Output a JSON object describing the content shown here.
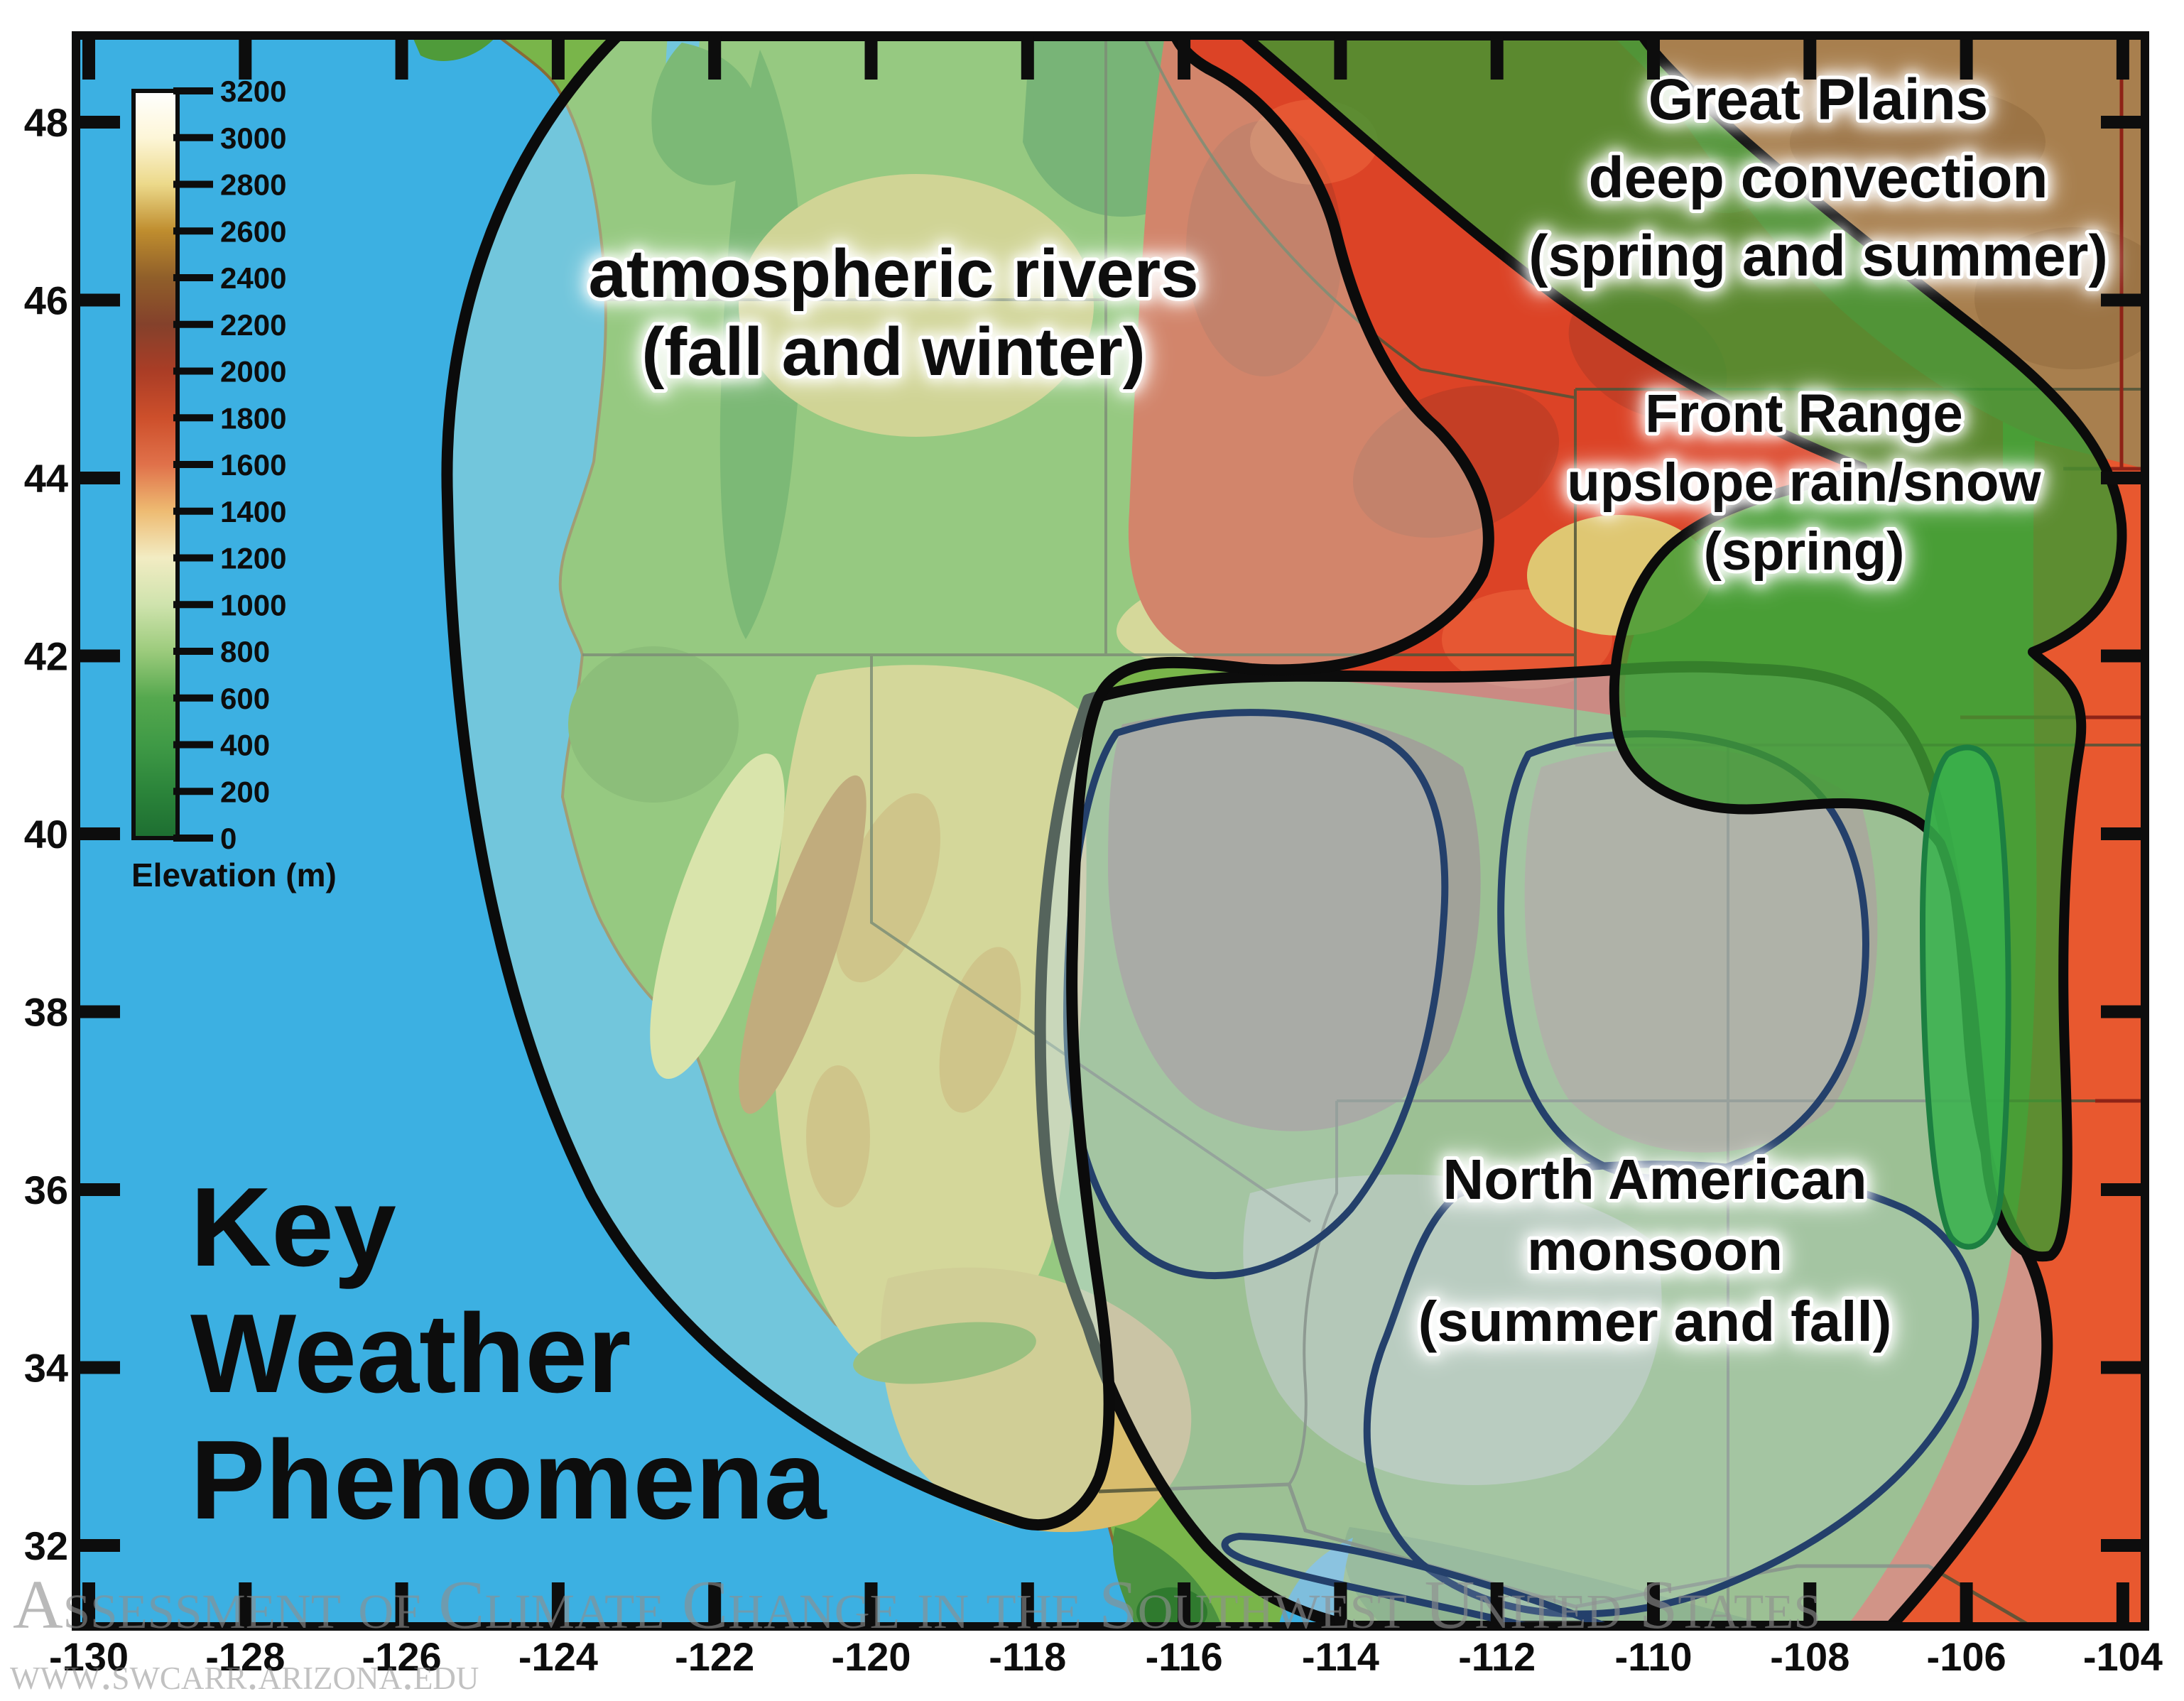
{
  "title": {
    "lines": [
      "Key",
      "Weather",
      "Phenomena"
    ]
  },
  "regions": [
    {
      "id": "atmospheric-rivers",
      "label_lines": [
        "atmospheric rivers",
        "(fall and winter)"
      ]
    },
    {
      "id": "great-plains-deep-convection",
      "label_lines": [
        "Great Plains",
        "deep convection",
        "(spring and summer)"
      ]
    },
    {
      "id": "front-range-upslope",
      "label_lines": [
        "Front Range",
        "upslope rain/snow",
        "(spring)"
      ]
    },
    {
      "id": "north-american-monsoon",
      "label_lines": [
        "North American",
        "monsoon",
        "(summer and fall)"
      ]
    }
  ],
  "axes": {
    "lon_ticks": [
      -130,
      -128,
      -126,
      -124,
      -122,
      -120,
      -118,
      -116,
      -114,
      -112,
      -110,
      -108,
      -106,
      -104
    ],
    "lat_ticks": [
      48,
      46,
      44,
      42,
      40,
      38,
      36,
      34,
      32
    ]
  },
  "colorbar": {
    "label": "Elevation (m)",
    "tick_values": [
      3200,
      3000,
      2800,
      2600,
      2400,
      2200,
      2000,
      1800,
      1600,
      1400,
      1200,
      1000,
      800,
      600,
      400,
      200,
      0
    ],
    "stops": [
      {
        "v": 0,
        "c": "#1d6e31"
      },
      {
        "v": 200,
        "c": "#2b843a"
      },
      {
        "v": 400,
        "c": "#3f9a46"
      },
      {
        "v": 600,
        "c": "#55a84e"
      },
      {
        "v": 800,
        "c": "#9ccb7c"
      },
      {
        "v": 1000,
        "c": "#cfe3ad"
      },
      {
        "v": 1200,
        "c": "#f2ecc3"
      },
      {
        "v": 1400,
        "c": "#eebb72"
      },
      {
        "v": 1600,
        "c": "#e0714a"
      },
      {
        "v": 1800,
        "c": "#cd4f2b"
      },
      {
        "v": 2000,
        "c": "#aa3d26"
      },
      {
        "v": 2200,
        "c": "#84412b"
      },
      {
        "v": 2400,
        "c": "#905f2a"
      },
      {
        "v": 2600,
        "c": "#bf8d2e"
      },
      {
        "v": 2800,
        "c": "#ecd98a"
      },
      {
        "v": 3000,
        "c": "#fdf6d8"
      },
      {
        "v": 3200,
        "c": "#ffffff"
      }
    ]
  },
  "watermark": {
    "line1": "Assessment of Climate Change in the Southwest United States",
    "line2": "www.swcarr.arizona.edu"
  },
  "colors": {
    "ocean": "#3cb0e2",
    "land_base": "#79b54a",
    "rockies_red": "#dc4326",
    "plains_brown": "#a87f4e",
    "east_orange": "#e8582f",
    "monsoon_fill": "rgba(188,203,216,0.52)",
    "green_overlay": "rgba(62,152,50,0.82)",
    "navy_outline": "#24406b",
    "region_outline": "#0b0b0b"
  }
}
